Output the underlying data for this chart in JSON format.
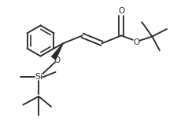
{
  "bg_color": "#ffffff",
  "line_color": "#2a2a2a",
  "lw": 1.35,
  "figsize": [
    2.39,
    1.67
  ],
  "dpi": 100,
  "font_size": 7.0,
  "xlim": [
    0,
    10
  ],
  "ylim": [
    0,
    7
  ]
}
